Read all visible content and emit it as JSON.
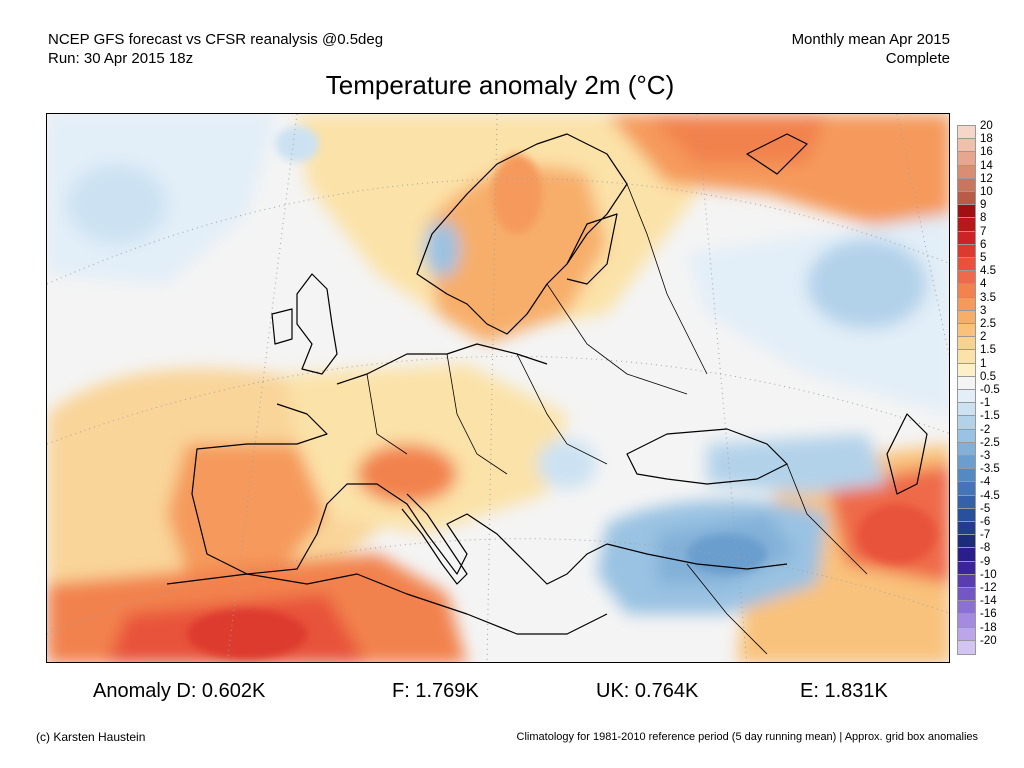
{
  "header": {
    "line1_left": "NCEP GFS forecast vs CFSR reanalysis @0.5deg",
    "line2_left": "Run: 30 Apr 2015 18z",
    "line1_right": "Monthly mean Apr 2015",
    "line2_right": "Complete"
  },
  "title": "Temperature anomaly 2m (°C)",
  "scale": {
    "labels": [
      "20",
      "18",
      "16",
      "14",
      "12",
      "10",
      "9",
      "8",
      "7",
      "6",
      "5",
      "4.5",
      "4",
      "3.5",
      "3",
      "2.5",
      "2",
      "1.5",
      "1",
      "0.5",
      "-0.5",
      "-1",
      "-1.5",
      "-2",
      "-2.5",
      "-3",
      "-3.5",
      "-4",
      "-4.5",
      "-5",
      "-6",
      "-7",
      "-8",
      "-9",
      "-10",
      "-12",
      "-14",
      "-16",
      "-18",
      "-20"
    ],
    "colors": [
      "#f6d6c8",
      "#f0c0aa",
      "#e6a78e",
      "#d98e74",
      "#c9765e",
      "#b85c48",
      "#a01010",
      "#b81818",
      "#cc2424",
      "#dc3a2e",
      "#e8523a",
      "#ee6a48",
      "#f2824e",
      "#f59a5c",
      "#f7ae6a",
      "#f9c27c",
      "#fad290",
      "#fbe2a8",
      "#fdf0c8",
      "#f4f4f4",
      "#e2eef8",
      "#cce2f2",
      "#b2d2ea",
      "#9ac2e2",
      "#82b0d8",
      "#6a9ece",
      "#548ac2",
      "#4276b6",
      "#3462aa",
      "#28509c",
      "#203e8c",
      "#1c2c7a",
      "#2a1e8a",
      "#3c249a",
      "#5a3eb0",
      "#7456c4",
      "#8c70d4",
      "#a48ae0",
      "#bca6ea",
      "#d4c4f2"
    ]
  },
  "stats": {
    "d": "Anomaly D: 0.602K",
    "f": "F: 1.769K",
    "uk": "UK: 0.764K",
    "e": "E: 1.831K"
  },
  "footer": {
    "left": "(c) Karsten Haustein",
    "right": "Climatology for 1981-2010 reference period (5 day running mean) | Approx. grid box anomalies"
  }
}
